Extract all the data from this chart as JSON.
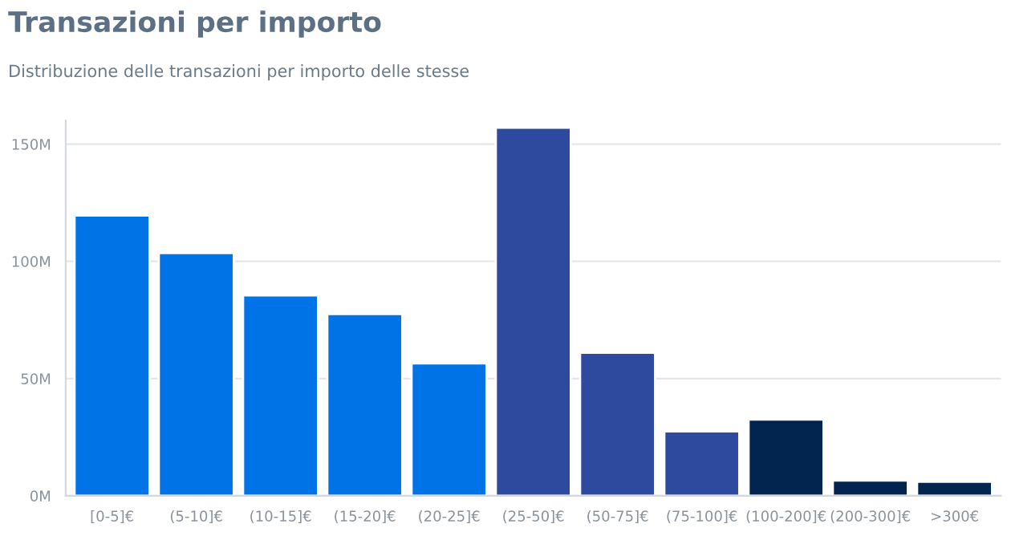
{
  "chart_data": {
    "type": "bar",
    "title": "Transazioni per importo",
    "subtitle": "Distribuzione delle transazioni per importo delle stesse",
    "categories": [
      "[0-5]€",
      "(5-10]€",
      "(10-15]€",
      "(15-20]€",
      "(20-25]€",
      "(25-50]€",
      "(50-75]€",
      "(75-100]€",
      "(100-200]€",
      "(200-300]€",
      ">300€"
    ],
    "values": [
      119.5,
      103.5,
      85.5,
      77.5,
      56.5,
      157,
      61,
      27.5,
      32.5,
      6.5,
      6
    ],
    "colors": [
      "#0073e6",
      "#0073e6",
      "#0073e6",
      "#0073e6",
      "#0073e6",
      "#2e4a9e",
      "#2e4a9e",
      "#2e4a9e",
      "#01254f",
      "#01254f",
      "#01254f"
    ],
    "ylim": [
      0,
      160
    ],
    "yticks": [
      {
        "value": 0,
        "label": "0M"
      },
      {
        "value": 50,
        "label": "50M"
      },
      {
        "value": 100,
        "label": "100M"
      },
      {
        "value": 150,
        "label": "150M"
      }
    ],
    "grid": "y"
  }
}
